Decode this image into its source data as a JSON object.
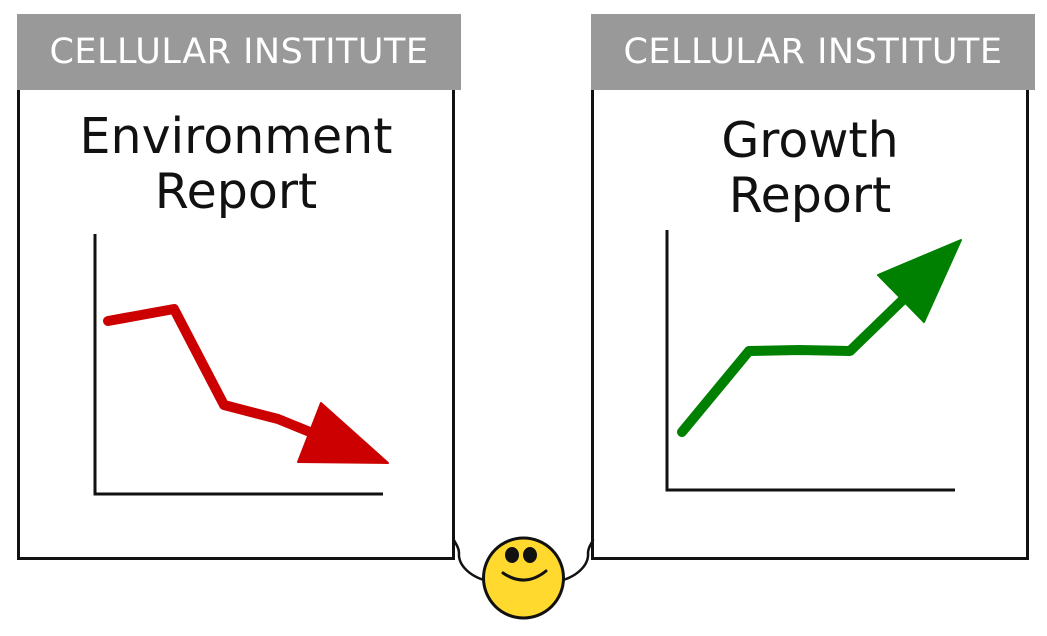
{
  "reports": [
    {
      "header": "CELLULAR INSTITUTE",
      "title_line1": "Environment",
      "title_line2": "Report",
      "trend": "down",
      "line_color": "#cc0000"
    },
    {
      "header": "CELLULAR INSTITUTE",
      "title_line1": "Growth",
      "title_line2": "Report",
      "trend": "up",
      "line_color": "#008000"
    }
  ],
  "header_color": "#999999",
  "character": {
    "face_color": "#ffd92e",
    "expression": "smiling"
  }
}
